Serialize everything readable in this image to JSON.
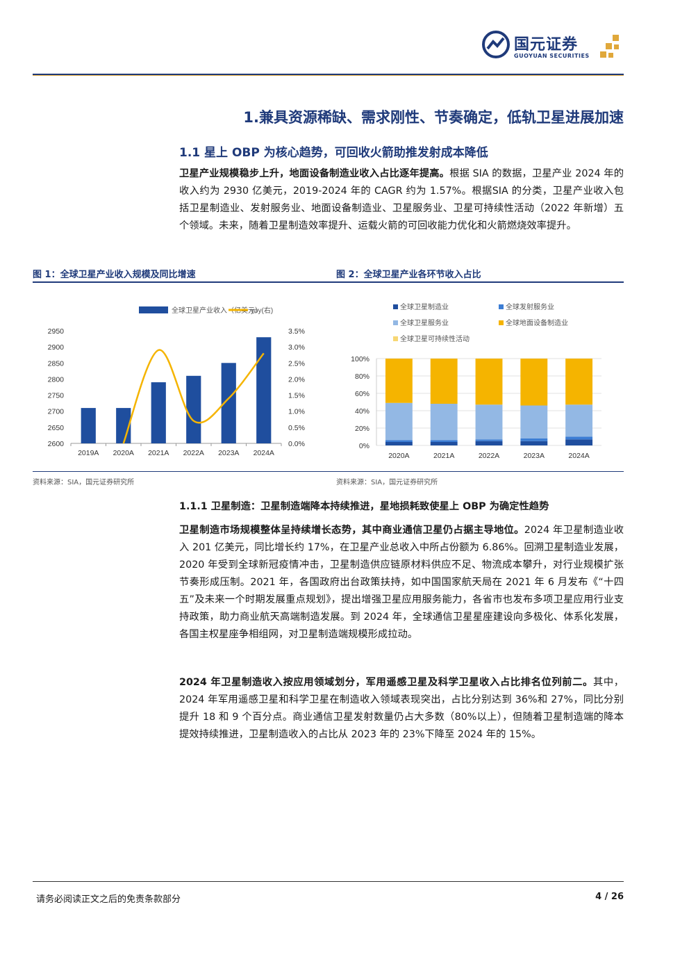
{
  "header": {
    "brand_cn": "国元证券",
    "brand_en": "GUOYUAN SECURITIES",
    "brand_color": "#1f3a7a",
    "accent_color": "#e0a83b"
  },
  "section_title": "1.兼具资源稀缺、需求刚性、节奏确定，低轨卫星进展加速",
  "subsection_title": "1.1  星上 OBP 为核心趋势，可回收火箭助推发射成本降低",
  "para1": {
    "lead": "卫星产业规模稳步上升，地面设备制造业收入占比逐年提高。",
    "body": "根据 SIA 的数据，卫星产业 2024 年的收入约为 2930 亿美元，2019-2024 年的 CAGR 约为 1.57%。根据SIA 的分类，卫星产业收入包括卫星制造业、发射服务业、地面设备制造业、卫星服务业、卫星可持续性活动（2022 年新增）五个领域。未来，随着卫星制造效率提升、运载火箭的可回收能力优化和火箭燃烧效率提升。"
  },
  "figures": {
    "fig1_title": "图 1：全球卫星产业收入规模及同比增速",
    "fig2_title": "图 2：全球卫星产业各环节收入占比",
    "fig1_source": "资料来源：SIA，国元证券研究所",
    "fig2_source": "资料来源：SIA，国元证券研究所"
  },
  "chart_data": [
    {
      "type": "bar",
      "categories": [
        "2019A",
        "2020A",
        "2021A",
        "2022A",
        "2023A",
        "2024A"
      ],
      "series": [
        {
          "name": "全球卫星产业收入（亿美元）",
          "type": "bar",
          "axis": "left",
          "color": "#1f4e9e",
          "values": [
            2710,
            2710,
            2790,
            2810,
            2850,
            2930
          ]
        },
        {
          "name": "yoy(右)",
          "type": "line",
          "axis": "right",
          "color": "#f5b400",
          "values": [
            null,
            0.0,
            2.9,
            0.7,
            1.4,
            2.8
          ]
        }
      ],
      "ylim": [
        2600,
        2950
      ],
      "yticks": [
        "2950",
        "2900",
        "2850",
        "2800",
        "2750",
        "2700",
        "2650",
        "2600"
      ],
      "y2lim": [
        0,
        3.5
      ],
      "y2ticks": [
        "3.5%",
        "3.0%",
        "2.5%",
        "2.0%",
        "1.5%",
        "1.0%",
        "0.5%",
        "0.0%"
      ],
      "legend": "top"
    },
    {
      "type": "bar",
      "stacked": true,
      "categories": [
        "2020A",
        "2021A",
        "2022A",
        "2023A",
        "2024A"
      ],
      "series": [
        {
          "name": "全球卫星制造业",
          "color": "#1f4e9e",
          "values": [
            4,
            4,
            5,
            5,
            7
          ]
        },
        {
          "name": "全球发射服务业",
          "color": "#3c7dd4",
          "values": [
            2,
            2,
            2,
            3,
            3
          ]
        },
        {
          "name": "全球卫星服务业",
          "color": "#93b8e4",
          "values": [
            43,
            42,
            40,
            38,
            37
          ]
        },
        {
          "name": "全球地面设备制造业",
          "color": "#f5b400",
          "values": [
            51,
            52,
            53,
            54,
            53
          ]
        },
        {
          "name": "全球卫星可持续性活动",
          "color": "#f7d774",
          "values": [
            0,
            0,
            0,
            0,
            0
          ]
        }
      ],
      "ylim": [
        0,
        100
      ],
      "yticks": [
        "100%",
        "80%",
        "60%",
        "40%",
        "20%",
        "0%"
      ],
      "legend": "top"
    }
  ],
  "h3": "1.1.1 卫星制造：卫星制造端降本持续推进，星地损耗致使星上 OBP 为确定性趋势",
  "para2": {
    "lead": "卫星制造市场规模整体呈持续增长态势，其中商业通信卫星仍占据主导地位。",
    "body": "2024 年卫星制造业收入 201 亿美元，同比增长约 17%，在卫星产业总收入中所占份额为 6.86%。回溯卫星制造业发展，2020 年受到全球新冠疫情冲击，卫星制造供应链原材料供应不足、物流成本攀升，对行业规模扩张节奏形成压制。2021 年，各国政府出台政策扶持，如中国国家航天局在 2021 年 6 月发布《“十四五”及未来一个时期发展重点规划》，提出增强卫星应用服务能力，各省市也发布多项卫星应用行业支持政策，助力商业航天高端制造发展。到 2024 年，全球通信卫星星座建设向多极化、体系化发展，各国主权星座争相组网，对卫星制造端规模形成拉动。"
  },
  "para3": {
    "lead": "2024 年卫星制造收入按应用领域划分，军用遥感卫星及科学卫星收入占比排名位列前二。",
    "body": "其中，2024 年军用遥感卫星和科学卫星在制造收入领域表现突出，占比分别达到 36%和 27%，同比分别提升 18 和 9 个百分点。商业通信卫星发射数量仍占大多数（80%以上），但随着卫星制造端的降本提效持续推进，卫星制造收入的占比从 2023 年的 23%下降至 2024 年的 15%。"
  },
  "footer": {
    "disclaimer": "请务必阅读正文之后的免责条款部分",
    "page": "4 / 26"
  }
}
